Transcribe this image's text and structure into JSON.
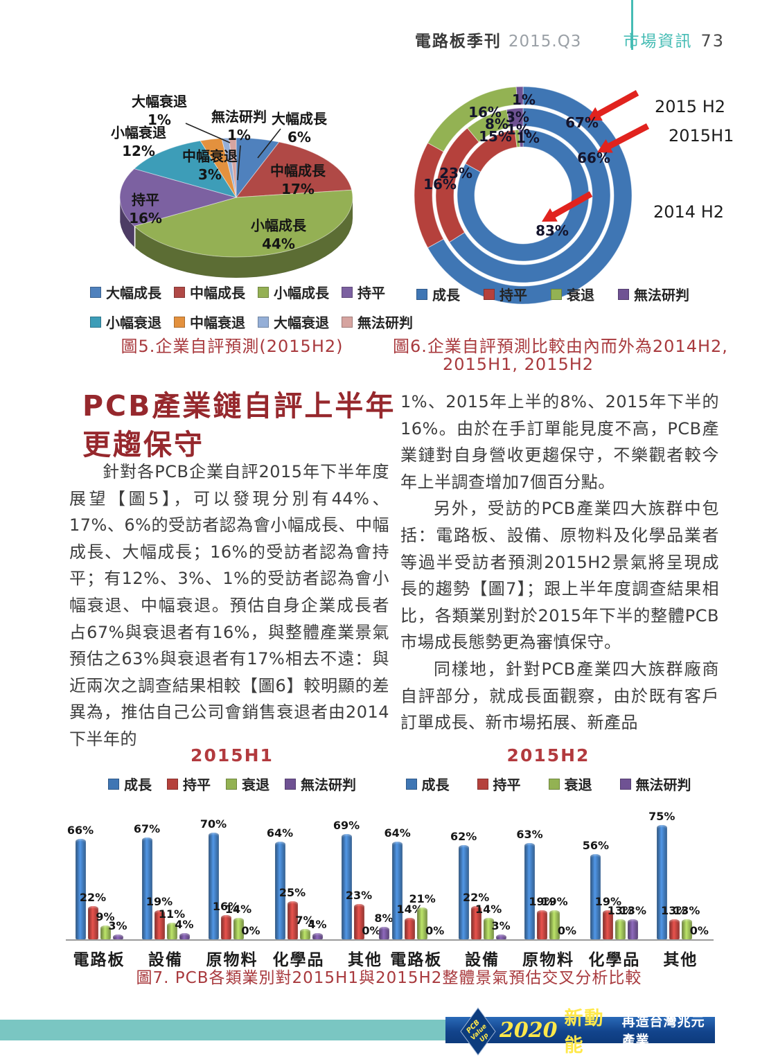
{
  "header": {
    "journal": "電路板季刊",
    "issue": "2015.Q3",
    "section": "市場資訊",
    "page_number": "73"
  },
  "colors": {
    "caption_red": "#a8393d",
    "heading_red": "#96282d",
    "header_teal": "#45bcb4",
    "footer_teal": "#7ac6c2",
    "banner_blue": "#12448c",
    "arrow_red": "#e1231e"
  },
  "figures": {
    "fig5_caption": "圖5.企業自評預測(2015H2)",
    "fig6_caption_line1": "圖6.企業自評預測比較由內而外為2014H2,",
    "fig6_caption_line2": "2015H1, 2015H2",
    "fig7_caption": "圖7. PCB各類業別對2015H1與2015H2整體景氣預估交叉分析比較"
  },
  "article": {
    "heading_line1": "PCB產業鏈自評上半年",
    "heading_line2": "更趨保守",
    "left_paragraph": "針對各PCB企業自評2015年下半年度展望【圖5】，可以發現分別有44%、17%、6%的受訪者認為會小幅成長、中幅成長、大幅成長；16%的受訪者認為會持平；有12%、3%、1%的受訪者認為會小幅衰退、中幅衰退。預估自身企業成長者占67%與衰退者有16%，與整體產業景氣預估之63%與衰退者有17%相去不遠：與近兩次之調查結果相較【圖6】較明顯的差異為，推估自己公司會銷售衰退者由2014下半年的",
    "right_paragraph_1": "1%、2015年上半的8%、2015年下半的16%。由於在手訂單能見度不高，PCB產業鏈對自身營收更趨保守，不樂觀者較今年上半調查增加7個百分點。",
    "right_paragraph_2": "另外，受訪的PCB產業四大族群中包括：電路板、設備、原物料及化學品業者等過半受訪者預測2015H2景氣將呈現成長的趨勢【圖7】；跟上半年度調查結果相比，各類業別對於2015年下半的整體PCB市場成長態勢更為審慎保守。",
    "right_paragraph_3": "同樣地，針對PCB產業四大族群廠商自評部分，就成長面觀察，由於既有客戶訂單成長、新市場拓展、新產品"
  },
  "chart_data": [
    {
      "type": "pie",
      "style": "3d",
      "title": "圖5.企業自評預測(2015H2)",
      "labels": [
        "大幅成長",
        "中幅成長",
        "小幅成長",
        "持平",
        "小幅衰退",
        "中幅衰退",
        "大幅衰退",
        "無法研判"
      ],
      "values": [
        6,
        17,
        44,
        16,
        12,
        3,
        1,
        1
      ],
      "colors": [
        "#4f81bd",
        "#b04946",
        "#94b054",
        "#7c61a1",
        "#3d9db8",
        "#e3913e",
        "#95afd7",
        "#d6a4a0"
      ],
      "legend_position": "bottom"
    },
    {
      "type": "donut",
      "title": "圖6.企業自評預測比較由內而外為2014H2, 2015H1, 2015H2",
      "categories": [
        "成長",
        "持平",
        "衰退",
        "無法研判"
      ],
      "colors": [
        "#3f76b4",
        "#b5413c",
        "#93b253",
        "#6f5293"
      ],
      "ring_order": "inner-to-outer",
      "rings": [
        {
          "label": "2014 H2",
          "values": [
            83,
            15,
            1,
            1
          ]
        },
        {
          "label": "2015H1",
          "values": [
            66,
            23,
            8,
            3
          ]
        },
        {
          "label": "2015 H2",
          "values": [
            67,
            16,
            16,
            1
          ]
        }
      ],
      "legend_position": "bottom"
    },
    {
      "type": "bar",
      "title": "2015H1",
      "categories": [
        "電路板",
        "設備",
        "原物料",
        "化學品",
        "其他"
      ],
      "series": [
        {
          "name": "成長",
          "values": [
            66,
            67,
            70,
            64,
            69
          ]
        },
        {
          "name": "持平",
          "values": [
            22,
            19,
            16,
            25,
            23
          ]
        },
        {
          "name": "衰退",
          "values": [
            9,
            11,
            14,
            7,
            0
          ]
        },
        {
          "name": "無法研判",
          "values": [
            3,
            4,
            0,
            4,
            8
          ]
        }
      ],
      "colors": [
        "#3f76b4",
        "#b5413c",
        "#93b253",
        "#6f5293"
      ],
      "ylim": [
        0,
        80
      ],
      "value_labels": true,
      "legend_position": "top"
    },
    {
      "type": "bar",
      "title": "2015H2",
      "categories": [
        "電路板",
        "設備",
        "原物料",
        "化學品",
        "其他"
      ],
      "series": [
        {
          "name": "成長",
          "values": [
            64,
            62,
            63,
            56,
            75
          ]
        },
        {
          "name": "持平",
          "values": [
            14,
            22,
            19,
            19,
            13
          ]
        },
        {
          "name": "衰退",
          "values": [
            21,
            14,
            19,
            13,
            13
          ]
        },
        {
          "name": "無法研判",
          "values": [
            0,
            3,
            0,
            13,
            0
          ]
        }
      ],
      "colors": [
        "#3f76b4",
        "#b5413c",
        "#93b253",
        "#6f5293"
      ],
      "ylim": [
        0,
        80
      ],
      "value_labels": true,
      "legend_position": "top"
    }
  ],
  "footer": {
    "badge_line1": "PCB",
    "badge_line2": "Value",
    "badge_line3": "Up",
    "year": "2020",
    "slogan_main": "新動能",
    "slogan_sub": "再造台灣兆元產業"
  }
}
